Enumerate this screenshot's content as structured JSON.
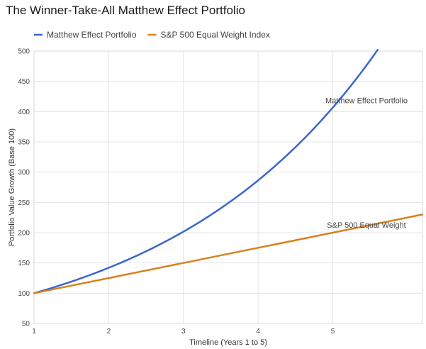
{
  "chart_data": {
    "type": "line",
    "title": "The Winner-Take-All Matthew Effect Portfolio",
    "xlabel": "Timeline (Years 1 to 5)",
    "ylabel": "Portfolio Value Growth (Base 100)",
    "xlim": [
      1,
      6.2
    ],
    "ylim": [
      50,
      500
    ],
    "x_ticks": [
      1,
      2,
      3,
      4,
      5
    ],
    "y_ticks": [
      50,
      100,
      150,
      200,
      250,
      300,
      350,
      400,
      450,
      500
    ],
    "grid": true,
    "legend_position": "top-left",
    "series": [
      {
        "name": "Matthew Effect Portfolio",
        "color": "#3a66cc",
        "model": "exponential",
        "x": [
          1,
          1.5,
          2,
          2.5,
          3,
          3.5,
          4,
          4.5,
          5,
          5.5,
          5.6
        ],
        "y": [
          100,
          119,
          142,
          169,
          202,
          240,
          286,
          341,
          406,
          484,
          502
        ]
      },
      {
        "name": "S&P 500 Equal Weight Index",
        "color": "#d9801e",
        "model": "linear",
        "x": [
          1,
          2,
          3,
          4,
          5,
          6.2
        ],
        "y": [
          100,
          125,
          150,
          175,
          200,
          230
        ]
      }
    ],
    "annotations": [
      {
        "text": "Matthew Effect Portfolio",
        "x": 5.45,
        "y": 414
      },
      {
        "text": "S&P 500 Equal Weight",
        "x": 5.45,
        "y": 208
      }
    ]
  }
}
